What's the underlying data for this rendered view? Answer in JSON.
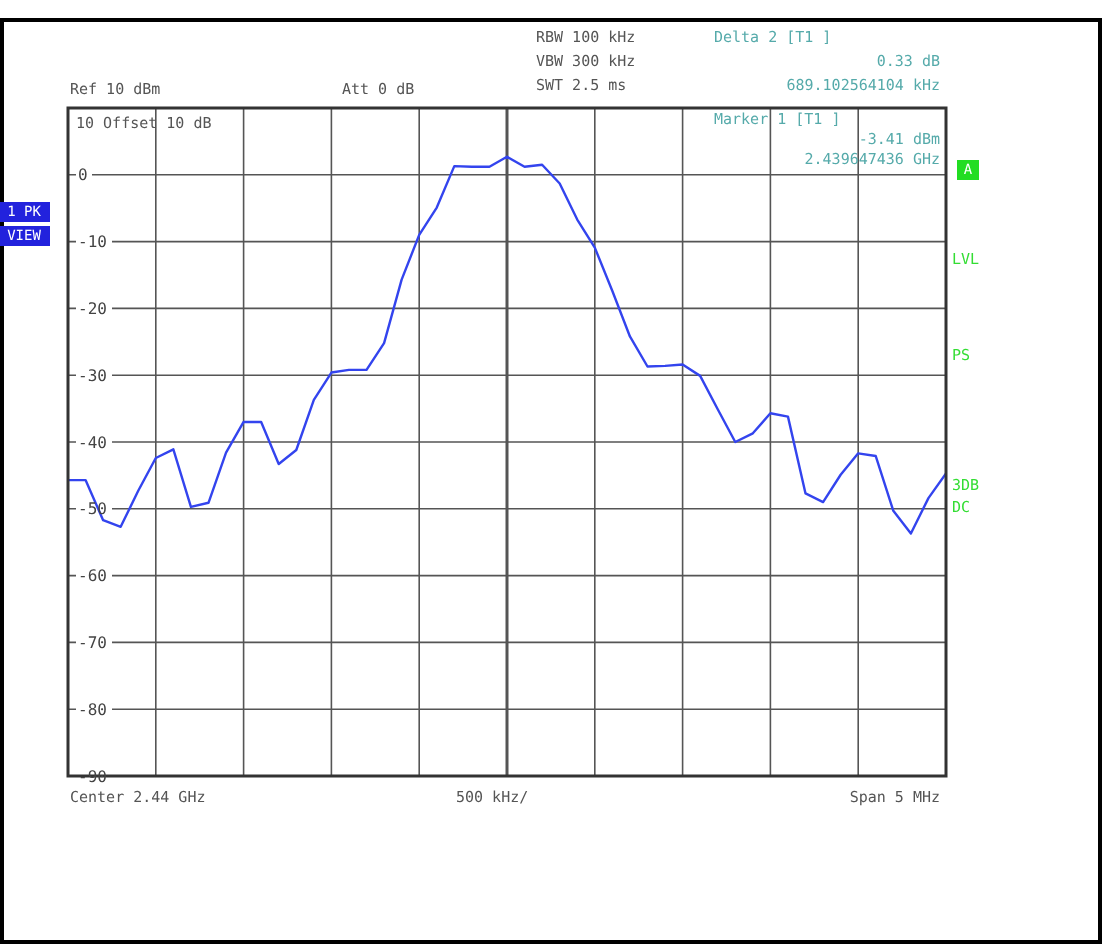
{
  "chart_data": {
    "type": "line",
    "ylim": [
      -90,
      10
    ],
    "yticks": [
      0,
      -10,
      -20,
      -30,
      -40,
      -50,
      -60,
      -70,
      -80,
      -90
    ],
    "categories": [
      null,
      null,
      null,
      null,
      null,
      null,
      null,
      null,
      null,
      null,
      null,
      null,
      null,
      null,
      null,
      null,
      null,
      null,
      null,
      null,
      null,
      null,
      null,
      null,
      null,
      null,
      null,
      null,
      null,
      null,
      null,
      null,
      null,
      null,
      null,
      null,
      null,
      null,
      null,
      null,
      null,
      null,
      null,
      null,
      null,
      null,
      null,
      null,
      null,
      null,
      null
    ],
    "tick_labels": "y",
    "grid": true,
    "marker": "none",
    "line_style": "solid",
    "series": [
      {
        "color": "#3344ee",
        "values": [
          -45.7,
          -45.7,
          -51.7,
          -52.7,
          -47.3,
          -42.4,
          -41.1,
          -49.7,
          -49.1,
          -41.6,
          -37.0,
          -37.0,
          -43.3,
          -41.2,
          -33.7,
          -29.6,
          -29.2,
          -29.2,
          -25.2,
          -15.7,
          -9.0,
          -4.9,
          1.3,
          1.2,
          1.2,
          2.7,
          1.2,
          1.5,
          -1.3,
          -6.7,
          -10.9,
          -17.4,
          -24.2,
          -28.7,
          -28.6,
          -28.4,
          -30.1,
          -35.1,
          -40.0,
          -38.7,
          -35.7,
          -36.2,
          -47.7,
          -49.0,
          -44.9,
          -41.7,
          -42.1,
          -50.3,
          -53.7,
          -48.4,
          -44.7
        ]
      }
    ],
    "annotations": [
      "RBW 100 kHz",
      "VBW 300 kHz",
      "SWT 2.5 ms",
      "Ref 10 dBm",
      "Att 0 dB",
      "Delta 2 [T1 ]",
      "0.33 dB",
      "689.102564104 kHz",
      "Marker 1 [T1 ]",
      "-3.41 dBm",
      "2.439647436 GHz",
      "10  Offset  10 dB",
      "Center 2.44 GHz",
      "500 kHz/",
      "Span 5 MHz",
      "1 PK",
      "VIEW",
      "A",
      "LVL",
      "PS",
      "3DB",
      "DC"
    ]
  }
}
